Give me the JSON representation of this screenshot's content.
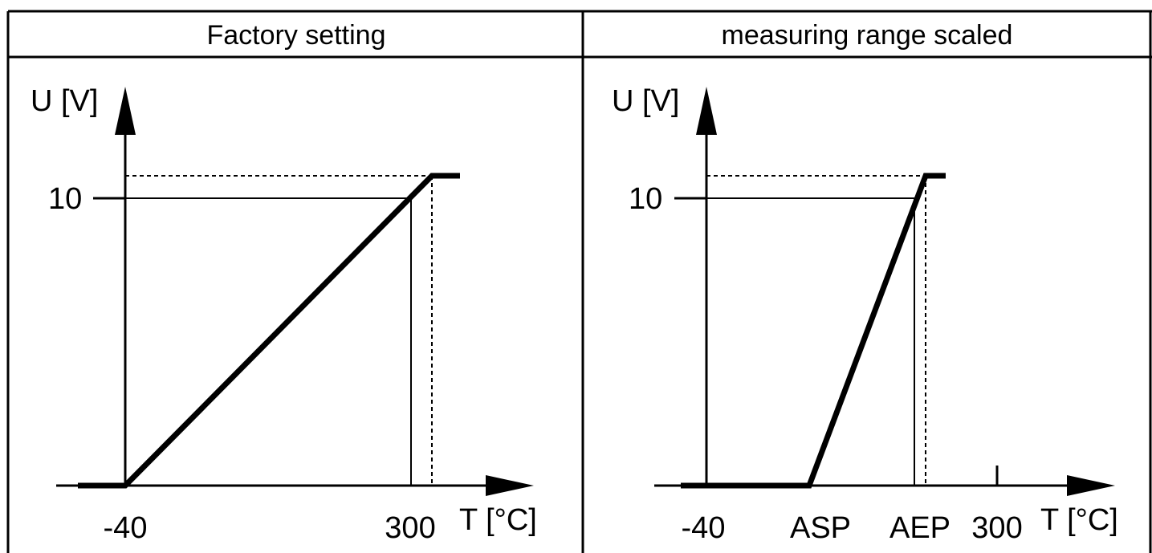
{
  "panels": [
    {
      "id": "factory",
      "header": "Factory setting",
      "y_axis_label": "U [V]",
      "x_axis_label": "T [°C]",
      "y_tick_label": "10",
      "x_tick_labels": [
        "-40",
        "300"
      ]
    },
    {
      "id": "scaled",
      "header": "measuring range scaled",
      "y_axis_label": "U [V]",
      "x_axis_label": "T [°C]",
      "y_tick_label": "10",
      "x_tick_labels": [
        "-40",
        "ASP",
        "AEP",
        "300"
      ]
    }
  ],
  "colors": {
    "line": "#000000",
    "background": "#ffffff"
  }
}
